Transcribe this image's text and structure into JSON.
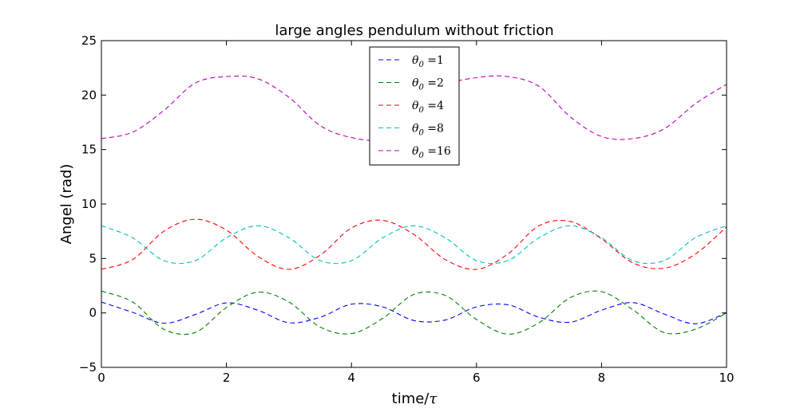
{
  "chart_data": {
    "type": "line",
    "title": "large angles pendulum without friction",
    "xlabel": "time/τ",
    "ylabel": "Angel (rad)",
    "xlim": [
      0,
      10
    ],
    "ylim": [
      -5,
      25
    ],
    "xticks": [
      "0",
      "2",
      "4",
      "6",
      "8",
      "10"
    ],
    "yticks": [
      "−5",
      "0",
      "5",
      "10",
      "15",
      "20",
      "25"
    ],
    "grid": false,
    "legend_position": "top-center",
    "series": [
      {
        "name": "θ0 =1",
        "color": "#0000ff",
        "x": [
          0,
          0.5,
          1.0,
          1.5,
          2.0,
          2.5,
          3.0,
          3.5,
          4.0,
          4.5,
          5.0,
          5.5,
          6.0,
          6.5,
          7.0,
          7.5,
          8.0,
          8.5,
          9.0,
          9.5,
          10.0
        ],
        "y": [
          1.0,
          0.05,
          -0.95,
          -0.15,
          0.92,
          0.25,
          -0.9,
          -0.4,
          0.8,
          0.55,
          -0.7,
          -0.65,
          0.55,
          0.75,
          -0.4,
          -0.85,
          0.25,
          0.95,
          -0.1,
          -1.0,
          0.0
        ]
      },
      {
        "name": "θ0 =2",
        "color": "#008000",
        "x": [
          0,
          0.5,
          1.0,
          1.5,
          2.0,
          2.5,
          3.0,
          3.5,
          4.0,
          4.5,
          5.0,
          5.5,
          6.0,
          6.5,
          7.0,
          7.5,
          8.0,
          8.5,
          9.0,
          9.5,
          10.0
        ],
        "y": [
          2.0,
          1.0,
          -1.5,
          -1.8,
          0.5,
          1.9,
          1.0,
          -1.3,
          -1.9,
          -0.5,
          1.7,
          1.6,
          -0.6,
          -1.95,
          -0.9,
          1.4,
          1.95,
          0.3,
          -1.8,
          -1.5,
          0.0
        ]
      },
      {
        "name": "θ0 =4",
        "color": "#ff0000",
        "x": [
          0,
          0.5,
          1.0,
          1.5,
          2.0,
          2.5,
          3.0,
          3.5,
          4.0,
          4.5,
          5.0,
          5.5,
          6.0,
          6.5,
          7.0,
          7.5,
          8.0,
          8.5,
          9.0,
          9.5,
          10.0
        ],
        "y": [
          4.0,
          4.9,
          7.5,
          8.6,
          7.6,
          5.2,
          4.0,
          5.3,
          7.8,
          8.5,
          7.2,
          4.9,
          4.0,
          5.4,
          8.0,
          8.4,
          6.8,
          4.6,
          4.1,
          5.4,
          7.9
        ]
      },
      {
        "name": "θ0 =8",
        "color": "#00bfbf",
        "x": [
          0,
          0.5,
          1.0,
          1.5,
          2.0,
          2.5,
          3.0,
          3.5,
          4.0,
          4.5,
          5.0,
          5.5,
          6.0,
          6.5,
          7.0,
          7.5,
          8.0,
          8.5,
          9.0,
          9.5,
          10.0
        ],
        "y": [
          8.0,
          6.9,
          4.8,
          4.8,
          6.9,
          8.0,
          6.9,
          4.8,
          4.8,
          6.9,
          8.0,
          6.9,
          4.8,
          4.8,
          6.9,
          8.0,
          6.9,
          4.8,
          4.8,
          6.9,
          8.0
        ]
      },
      {
        "name": "θ0 =16",
        "color": "#bf00bf",
        "x": [
          0,
          0.5,
          1.0,
          1.5,
          2.0,
          2.5,
          3.0,
          3.5,
          4.0,
          4.5,
          5.0,
          5.5,
          6.0,
          6.5,
          7.0,
          7.5,
          8.0,
          8.5,
          9.0,
          9.5,
          10.0
        ],
        "y": [
          16.0,
          16.6,
          18.6,
          21.1,
          21.7,
          21.5,
          19.8,
          17.2,
          16.1,
          16.0,
          17.9,
          20.8,
          21.6,
          21.7,
          20.8,
          18.0,
          16.2,
          16.0,
          16.9,
          19.2,
          21.0
        ]
      }
    ]
  }
}
